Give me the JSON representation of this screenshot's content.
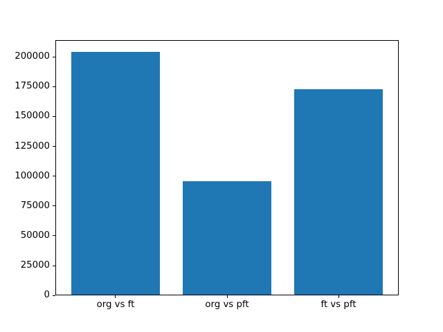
{
  "chart_data": {
    "type": "bar",
    "title": "",
    "xlabel": "",
    "ylabel": "",
    "categories": [
      "org vs ft",
      "org vs pft",
      "ft vs pft"
    ],
    "values": [
      204000,
      95500,
      173000
    ],
    "bar_color": "#1f77b4",
    "bar_width": 0.8,
    "ylim": [
      0,
      214200
    ],
    "xlim": [
      -0.54,
      2.54
    ],
    "yticks": [
      0,
      25000,
      50000,
      75000,
      100000,
      125000,
      150000,
      175000,
      200000
    ],
    "ytick_labels": [
      "0",
      "25000",
      "50000",
      "75000",
      "100000",
      "125000",
      "150000",
      "175000",
      "200000"
    ],
    "grid": false,
    "legend": null,
    "spine_color": "#000000",
    "background_color": "#ffffff"
  }
}
